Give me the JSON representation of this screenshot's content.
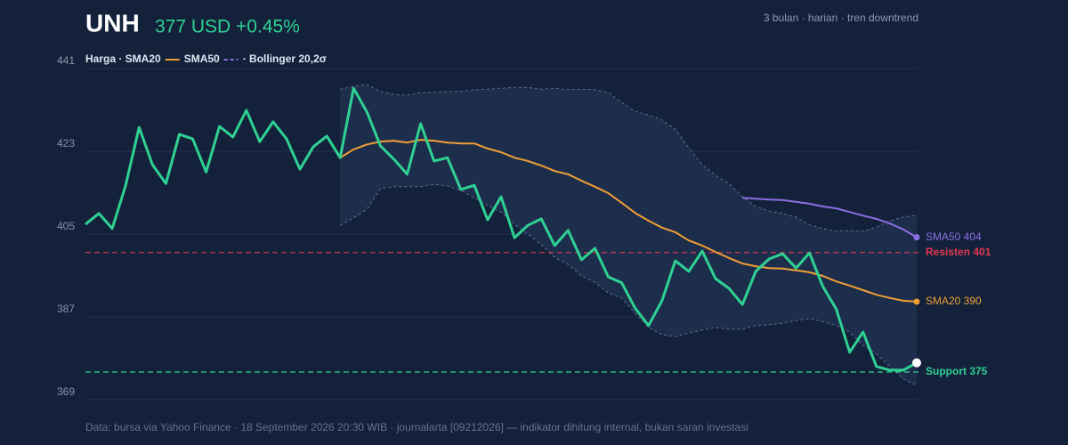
{
  "chart_data": {
    "type": "line",
    "title": "UNH",
    "headline": "377 USD +0.45%",
    "subtitle": "3 bulan · harian · tren downtrend",
    "legend": [
      {
        "text": "Harga · SMA20",
        "glyph": "solid",
        "color": "#f0a035"
      },
      {
        "text": "SMA50",
        "glyph": "dashed",
        "color": "#8b6fe3"
      },
      {
        "text": "· Bollinger 20,2σ"
      }
    ],
    "footer": "Data: bursa via Yahoo Finance · 18 September 2026 20:30 WIB · journalarta [09212026] — indikator dihitung internal, bukan saran investasi",
    "ylim": [
      369,
      441
    ],
    "yticks": [
      441,
      423,
      405,
      387,
      369
    ],
    "grid": true,
    "series": [
      {
        "color": "#2fd193",
        "values": [
          407.1,
          409.5,
          406.2,
          415.6,
          428.2,
          420.1,
          416.0,
          426.7,
          425.7,
          418.5,
          428.4,
          426.1,
          431.9,
          425.1,
          429.4,
          425.7,
          419.1,
          424.0,
          426.3,
          421.6,
          436.7,
          431.5,
          424.2,
          421.3,
          418.0,
          429.0,
          420.9,
          421.6,
          414.7,
          415.6,
          408.1,
          413.1,
          404.2,
          406.9,
          408.3,
          402.5,
          405.8,
          399.4,
          401.9,
          395.7,
          394.4,
          388.9,
          385.1,
          390.5,
          399.2,
          396.9,
          401.3,
          395.3,
          393.2,
          389.7,
          396.9,
          399.6,
          400.7,
          397.6,
          400.9,
          393.6,
          388.7,
          379.3,
          383.7,
          376.2,
          375.4,
          375.4,
          377.0
        ]
      },
      {
        "color": "#f0a035",
        "end_label": "SMA20 390",
        "values": [
          null,
          null,
          null,
          null,
          null,
          null,
          null,
          null,
          null,
          null,
          null,
          null,
          null,
          null,
          null,
          null,
          null,
          null,
          null,
          421.6,
          423.4,
          424.5,
          425.1,
          425.3,
          424.9,
          425.5,
          425.3,
          424.9,
          424.7,
          424.7,
          423.6,
          422.8,
          421.6,
          420.9,
          419.9,
          418.7,
          418.0,
          416.6,
          415.3,
          413.9,
          411.8,
          409.6,
          407.9,
          406.4,
          405.4,
          403.6,
          402.5,
          401.1,
          399.8,
          398.6,
          398.0,
          397.6,
          397.5,
          397.1,
          396.7,
          395.9,
          394.7,
          393.8,
          392.8,
          391.8,
          391.1,
          390.5,
          390.3
        ]
      },
      {
        "color": "#8b6fe3",
        "end_label": "SMA50 404",
        "values": [
          null,
          null,
          null,
          null,
          null,
          null,
          null,
          null,
          null,
          null,
          null,
          null,
          null,
          null,
          null,
          null,
          null,
          null,
          null,
          null,
          null,
          null,
          null,
          null,
          null,
          null,
          null,
          null,
          null,
          null,
          null,
          null,
          null,
          null,
          null,
          null,
          null,
          null,
          null,
          null,
          null,
          null,
          null,
          null,
          null,
          null,
          null,
          null,
          null,
          412.9,
          412.7,
          412.5,
          412.4,
          412.0,
          411.6,
          411.0,
          410.6,
          409.8,
          409.0,
          408.3,
          407.3,
          406.0,
          404.3
        ]
      }
    ],
    "bands": {
      "upper": [
        null,
        null,
        null,
        null,
        null,
        null,
        null,
        null,
        null,
        null,
        null,
        null,
        null,
        null,
        null,
        null,
        null,
        null,
        null,
        436.5,
        437.1,
        437.5,
        436.0,
        435.4,
        435.2,
        435.8,
        435.8,
        436.0,
        436.0,
        436.4,
        436.5,
        436.7,
        436.9,
        436.9,
        436.5,
        436.7,
        436.4,
        436.5,
        436.4,
        435.8,
        433.6,
        431.7,
        430.9,
        429.8,
        427.8,
        423.8,
        420.1,
        417.8,
        416.0,
        413.1,
        411.0,
        410.0,
        409.5,
        408.7,
        407.0,
        406.2,
        405.6,
        405.8,
        405.6,
        406.5,
        407.9,
        408.7,
        409.1
      ],
      "lower": [
        null,
        null,
        null,
        null,
        null,
        null,
        null,
        null,
        null,
        null,
        null,
        null,
        null,
        null,
        null,
        null,
        null,
        null,
        null,
        406.9,
        408.5,
        410.4,
        414.9,
        415.3,
        415.3,
        415.3,
        415.8,
        415.5,
        414.5,
        412.9,
        411.2,
        409.8,
        407.1,
        405.0,
        402.7,
        399.9,
        398.4,
        395.9,
        394.5,
        392.2,
        391.1,
        387.8,
        384.7,
        383.1,
        382.7,
        383.5,
        384.1,
        384.7,
        384.3,
        384.3,
        385.1,
        385.3,
        385.6,
        386.2,
        386.6,
        386.0,
        385.1,
        383.7,
        380.8,
        378.9,
        376.2,
        373.5,
        372.1
      ]
    },
    "levels": [
      {
        "label": "Resisten 401",
        "value": 401,
        "color": "#e0384e"
      },
      {
        "label": "Support 375",
        "value": 375,
        "color": "#2fd193"
      }
    ]
  }
}
